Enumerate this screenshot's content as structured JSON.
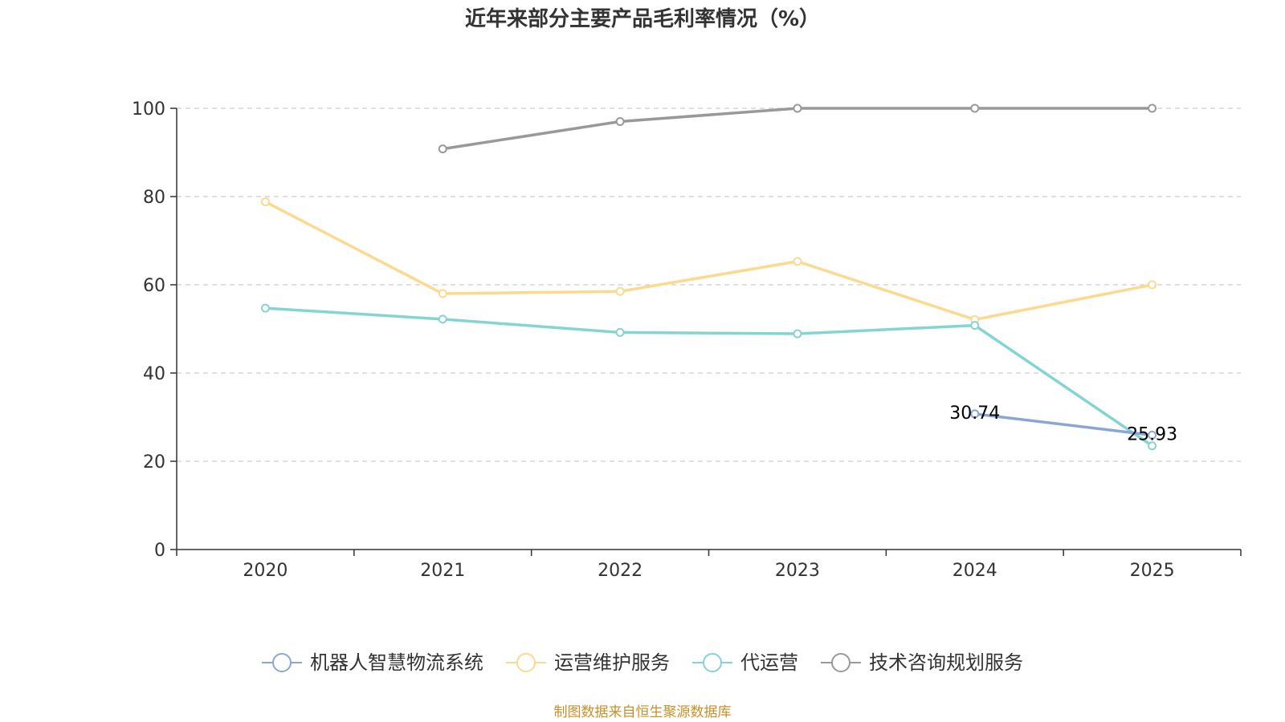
{
  "chart_data": {
    "type": "line",
    "title": "近年来部分主要产品毛利率情况（%）",
    "xlabel": "",
    "ylabel": "",
    "categories": [
      "2020",
      "2021",
      "2022",
      "2023",
      "2024",
      "2025"
    ],
    "ylim": [
      0,
      100
    ],
    "yticks": [
      0,
      20,
      40,
      60,
      80,
      100
    ],
    "grid": true,
    "legend_position": "bottom",
    "series": [
      {
        "name": "机器人智慧物流系统",
        "color": "#8aa6d6",
        "values": [
          null,
          null,
          null,
          null,
          30.74,
          25.93
        ],
        "data_labels": [
          "",
          "",
          "",
          "",
          "30.74",
          "25.93"
        ]
      },
      {
        "name": "运营维护服务",
        "color": "#fbd98f",
        "values": [
          78.8,
          58.0,
          58.5,
          65.3,
          52.1,
          60.0
        ]
      },
      {
        "name": "代运营",
        "color": "#84d4d2",
        "values": [
          54.7,
          52.2,
          49.2,
          48.9,
          50.8,
          23.5
        ]
      },
      {
        "name": "技术咨询规划服务",
        "color": "#999999",
        "values": [
          null,
          90.8,
          97.0,
          100.0,
          100.0,
          100.0
        ]
      }
    ],
    "source": "制图数据来自恒生聚源数据库"
  }
}
